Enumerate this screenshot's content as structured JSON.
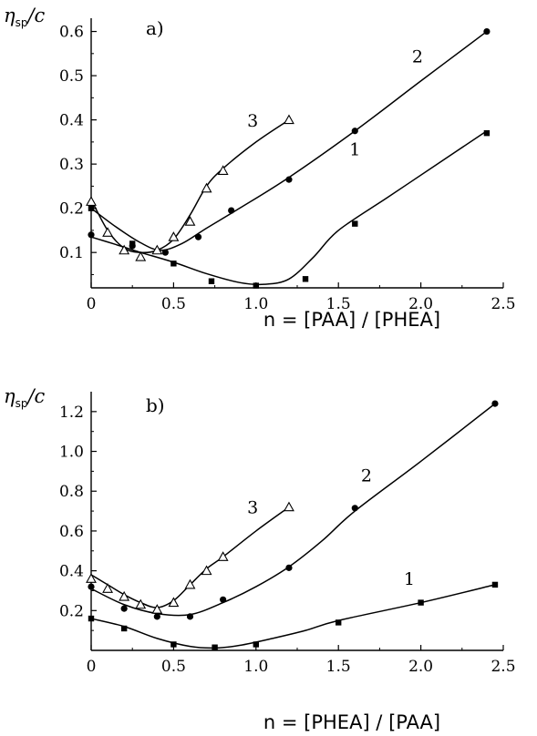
{
  "chart_data": [
    {
      "type": "line",
      "panel_label": "a)",
      "ylabel": {
        "main": "η",
        "sub": "sp",
        "tail": "/c"
      },
      "xlabel": "n = [PAA] / [PHEA]",
      "xlim": [
        0,
        2.5
      ],
      "ylim": [
        0.02,
        0.63
      ],
      "xticks": [
        0,
        0.5,
        1.0,
        1.5,
        2.0,
        2.5
      ],
      "xtick_labels": [
        "0",
        "0.5",
        "1.0",
        "1.5",
        "2.0",
        "2.5"
      ],
      "yticks": [
        0.1,
        0.2,
        0.3,
        0.4,
        0.5,
        0.6
      ],
      "ytick_labels": [
        "0.1",
        "0.2",
        "0.3",
        "0.4",
        "0.5",
        "0.6"
      ],
      "grid": false,
      "series": [
        {
          "name": "1",
          "marker": "square",
          "x": [
            0,
            0.25,
            0.5,
            0.73,
            1.0,
            1.3,
            1.6,
            2.4
          ],
          "y": [
            0.2,
            0.12,
            0.075,
            0.035,
            0.025,
            0.04,
            0.165,
            0.37
          ],
          "curve_x": [
            0,
            0.15,
            0.3,
            0.5,
            0.7,
            0.9,
            1.05,
            1.2,
            1.35,
            1.5,
            1.8,
            2.1,
            2.4
          ],
          "curve_y": [
            0.135,
            0.118,
            0.1,
            0.078,
            0.052,
            0.032,
            0.028,
            0.04,
            0.09,
            0.15,
            0.225,
            0.3,
            0.375
          ],
          "label_pos": [
            1.6,
            0.32
          ]
        },
        {
          "name": "2",
          "marker": "circle",
          "x": [
            0,
            0.25,
            0.45,
            0.65,
            0.85,
            1.2,
            1.6,
            2.4
          ],
          "y": [
            0.14,
            0.115,
            0.1,
            0.135,
            0.195,
            0.265,
            0.375,
            0.6
          ],
          "curve_x": [
            0,
            0.15,
            0.3,
            0.42,
            0.55,
            0.7,
            0.9,
            1.2,
            1.6,
            2.0,
            2.4
          ],
          "curve_y": [
            0.2,
            0.158,
            0.122,
            0.105,
            0.12,
            0.155,
            0.2,
            0.27,
            0.375,
            0.488,
            0.6
          ],
          "label_pos": [
            1.98,
            0.53
          ]
        },
        {
          "name": "3",
          "marker": "triangle-open",
          "x": [
            0,
            0.1,
            0.2,
            0.3,
            0.4,
            0.5,
            0.6,
            0.7,
            0.8,
            1.2
          ],
          "y": [
            0.215,
            0.145,
            0.105,
            0.09,
            0.105,
            0.135,
            0.17,
            0.245,
            0.285,
            0.4
          ],
          "curve_x": [
            0,
            0.1,
            0.2,
            0.3,
            0.4,
            0.5,
            0.6,
            0.7,
            0.8,
            1.0,
            1.2
          ],
          "curve_y": [
            0.22,
            0.15,
            0.11,
            0.1,
            0.105,
            0.13,
            0.185,
            0.25,
            0.29,
            0.35,
            0.4
          ],
          "label_pos": [
            0.98,
            0.385
          ]
        }
      ]
    },
    {
      "type": "line",
      "panel_label": "b)",
      "ylabel": {
        "main": "η",
        "sub": "sp",
        "tail": "/c"
      },
      "xlabel": "n = [PHEA] / [PAA]",
      "xlim": [
        0,
        2.5
      ],
      "ylim": [
        0,
        1.3
      ],
      "xticks": [
        0,
        0.5,
        1.0,
        1.5,
        2.0,
        2.5
      ],
      "xtick_labels": [
        "0",
        "0.5",
        "1.0",
        "1.5",
        "2.0",
        "2.5"
      ],
      "yticks": [
        0.2,
        0.4,
        0.6,
        0.8,
        1.0,
        1.2
      ],
      "ytick_labels": [
        "0.2",
        "0.4",
        "0.6",
        "0.8",
        "1.0",
        "1.2"
      ],
      "grid": false,
      "series": [
        {
          "name": "1",
          "marker": "square",
          "x": [
            0,
            0.2,
            0.5,
            0.75,
            1.0,
            1.5,
            2.0,
            2.45
          ],
          "y": [
            0.16,
            0.11,
            0.03,
            0.015,
            0.03,
            0.14,
            0.24,
            0.33
          ],
          "curve_x": [
            0,
            0.2,
            0.4,
            0.6,
            0.75,
            0.9,
            1.1,
            1.3,
            1.5,
            2.0,
            2.45
          ],
          "curve_y": [
            0.16,
            0.12,
            0.06,
            0.02,
            0.012,
            0.025,
            0.06,
            0.1,
            0.15,
            0.24,
            0.33
          ],
          "label_pos": [
            1.93,
            0.33
          ]
        },
        {
          "name": "2",
          "marker": "circle",
          "x": [
            0,
            0.2,
            0.4,
            0.6,
            0.8,
            1.2,
            1.6,
            2.45
          ],
          "y": [
            0.32,
            0.21,
            0.17,
            0.17,
            0.255,
            0.415,
            0.715,
            1.24
          ],
          "curve_x": [
            0,
            0.2,
            0.4,
            0.6,
            0.8,
            1.0,
            1.2,
            1.4,
            1.6,
            2.0,
            2.45
          ],
          "curve_y": [
            0.31,
            0.23,
            0.185,
            0.18,
            0.24,
            0.32,
            0.42,
            0.55,
            0.7,
            0.95,
            1.24
          ],
          "label_pos": [
            1.67,
            0.85
          ]
        },
        {
          "name": "3",
          "marker": "triangle-open",
          "x": [
            0,
            0.1,
            0.2,
            0.3,
            0.4,
            0.5,
            0.6,
            0.7,
            0.8,
            1.2
          ],
          "y": [
            0.36,
            0.31,
            0.27,
            0.23,
            0.205,
            0.24,
            0.33,
            0.4,
            0.47,
            0.72
          ],
          "curve_x": [
            0,
            0.1,
            0.2,
            0.3,
            0.4,
            0.5,
            0.6,
            0.7,
            0.8,
            1.0,
            1.2
          ],
          "curve_y": [
            0.38,
            0.33,
            0.28,
            0.24,
            0.215,
            0.25,
            0.33,
            0.41,
            0.47,
            0.6,
            0.72
          ],
          "label_pos": [
            0.98,
            0.69
          ]
        }
      ]
    }
  ]
}
